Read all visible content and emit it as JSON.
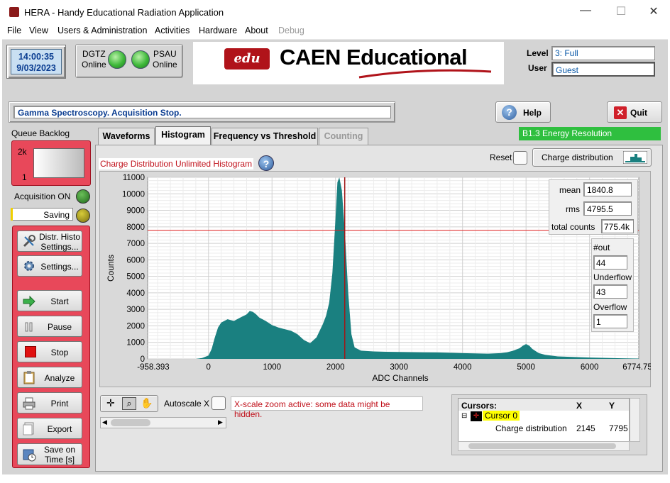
{
  "window": {
    "title": "HERA - Handy Educational Radiation Application",
    "minimize": "—",
    "maximize": "☐",
    "close": "✕"
  },
  "menu": [
    "File",
    "View",
    "Users & Administration",
    "Activities",
    "Hardware",
    "About",
    "Debug"
  ],
  "clock": {
    "time": "14:00:35",
    "date": "9/03/2023"
  },
  "devices": [
    {
      "name": "DGTZ",
      "state": "Online"
    },
    {
      "name": "PSAU",
      "state": "Online"
    }
  ],
  "logo": {
    "brand": "edu",
    "text": "CAEN Educational"
  },
  "user": {
    "level_label": "Level",
    "level_value": "3: Full",
    "user_label": "User",
    "user_value": "Guest"
  },
  "status_message": "Gamma Spectroscopy. Acquisition Stop.",
  "buttons": {
    "help": "Help",
    "quit": "Quit"
  },
  "experiment_badge": "B1.3 Energy Resolution",
  "left": {
    "queue_label": "Queue Backlog",
    "queue_max": "2k",
    "queue_min": "1",
    "acq_label": "Acquisition ON",
    "saving_label": "Saving",
    "actions": [
      "Distr. Histo Settings...",
      "Settings...",
      "Start",
      "Pause",
      "Stop",
      "Analyze",
      "Print",
      "Export",
      "Save on Time [s]"
    ]
  },
  "tabs": [
    "Waveforms",
    "Histogram",
    "Frequency vs Threshold",
    "Counting"
  ],
  "active_tab": "Histogram",
  "histogram": {
    "title": "Charge Distribution Unlimited Histogram",
    "help_icon": "?",
    "reset_label": "Reset",
    "series_button": "Charge distribution",
    "stats": {
      "mean_label": "mean",
      "mean": "1840.8",
      "rms_label": "rms",
      "rms": "4795.5",
      "total_label": "total counts",
      "total": "775.4k"
    },
    "out_label": "#out",
    "out": "44",
    "underflow_label": "Underflow",
    "underflow": "43",
    "overflow_label": "Overflow",
    "overflow": "1",
    "autoscale_label": "Autoscale X",
    "zoom_warning": "X-scale zoom active: some data might be hidden."
  },
  "cursors": {
    "header": "Cursors:",
    "col_x": "X",
    "col_y": "Y",
    "name": "Cursor 0",
    "series": "Charge distribution",
    "x": "2145",
    "y": "7795"
  },
  "chart_data": {
    "type": "area",
    "xlabel": "ADC Channels",
    "ylabel": "Counts",
    "xlim": [
      -958.393,
      6774.75
    ],
    "ylim": [
      0,
      11000
    ],
    "xticks": [
      "-958.393",
      "0",
      "1000",
      "2000",
      "3000",
      "4000",
      "5000",
      "6000",
      "6774.75"
    ],
    "xtick_values": [
      -958.393,
      0,
      1000,
      2000,
      3000,
      4000,
      5000,
      6000,
      6774.75
    ],
    "yticks": [
      0,
      1000,
      2000,
      3000,
      4000,
      5000,
      6000,
      7000,
      8000,
      9000,
      10000,
      11000
    ],
    "grid": true,
    "color": "#1a8080",
    "cursor": {
      "x": 2145,
      "y": 7795
    },
    "x": [
      -958,
      -200,
      -100,
      0,
      50,
      100,
      150,
      200,
      300,
      400,
      500,
      600,
      650,
      700,
      750,
      800,
      900,
      1000,
      1100,
      1200,
      1300,
      1400,
      1500,
      1600,
      1700,
      1750,
      1800,
      1850,
      1900,
      1950,
      2000,
      2030,
      2060,
      2100,
      2150,
      2200,
      2250,
      2300,
      2400,
      2600,
      2800,
      3000,
      3200,
      3400,
      3600,
      3800,
      4000,
      4200,
      4400,
      4600,
      4700,
      4800,
      4900,
      4950,
      5000,
      5050,
      5100,
      5200,
      5300,
      5500,
      6000,
      6500,
      6774
    ],
    "values": [
      0,
      0,
      50,
      200,
      600,
      1300,
      1900,
      2200,
      2400,
      2300,
      2500,
      2700,
      2900,
      2850,
      2700,
      2500,
      2300,
      2050,
      1900,
      1800,
      1700,
      1500,
      1150,
      950,
      1300,
      1700,
      2100,
      2600,
      3400,
      5200,
      8500,
      10700,
      11000,
      10200,
      7500,
      4000,
      1500,
      700,
      500,
      450,
      430,
      420,
      410,
      400,
      390,
      370,
      350,
      330,
      320,
      350,
      400,
      500,
      650,
      800,
      900,
      800,
      600,
      350,
      250,
      150,
      80,
      40,
      20
    ]
  }
}
